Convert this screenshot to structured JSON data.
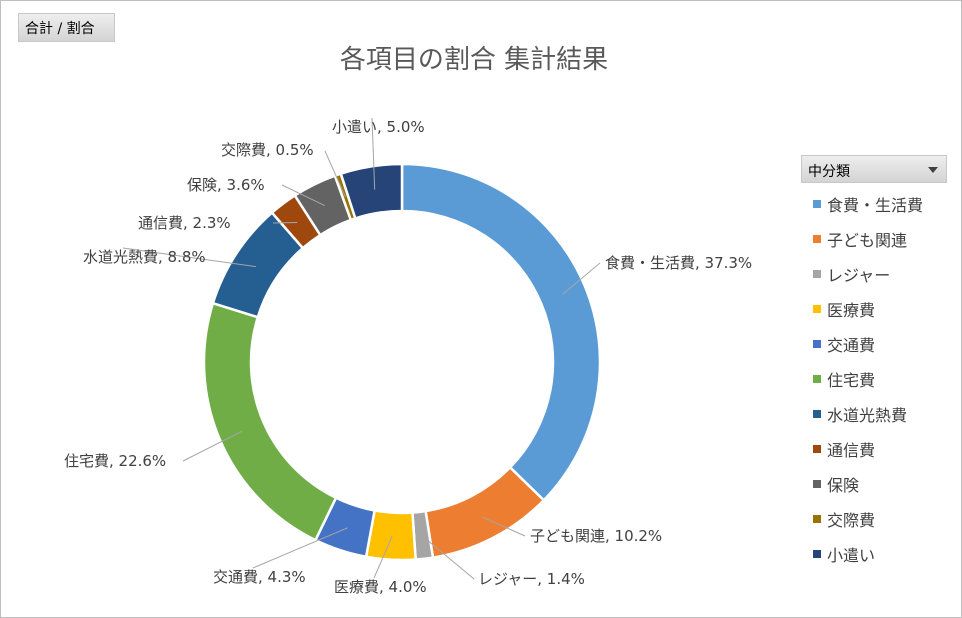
{
  "field_button": "合計 / 割合",
  "legend_header": "中分類",
  "chart_data": {
    "type": "pie",
    "variant": "donut",
    "title": "各項目の割合 集計結果",
    "legend_position": "right",
    "categories": [
      "食費・生活費",
      "子ども関連",
      "レジャー",
      "医療費",
      "交通費",
      "住宅費",
      "水道光熱費",
      "通信費",
      "保険",
      "交際費",
      "小遣い"
    ],
    "values": [
      37.3,
      10.2,
      1.4,
      4.0,
      4.3,
      22.6,
      8.8,
      2.3,
      3.6,
      0.5,
      5.0
    ],
    "labels": [
      "食費・生活費, 37.3%",
      "子ども関連, 10.2%",
      "レジャー, 1.4%",
      "医療費, 4.0%",
      "交通費, 4.3%",
      "住宅費, 22.6%",
      "水道光熱費, 8.8%",
      "通信費, 2.3%",
      "保険, 3.6%",
      "交際費, 0.5%",
      "小遣い, 5.0%"
    ],
    "colors": [
      "#5b9bd5",
      "#ed7d31",
      "#a5a5a5",
      "#ffc000",
      "#4472c4",
      "#70ad47",
      "#255e91",
      "#9e480e",
      "#636363",
      "#997300",
      "#264478"
    ]
  }
}
